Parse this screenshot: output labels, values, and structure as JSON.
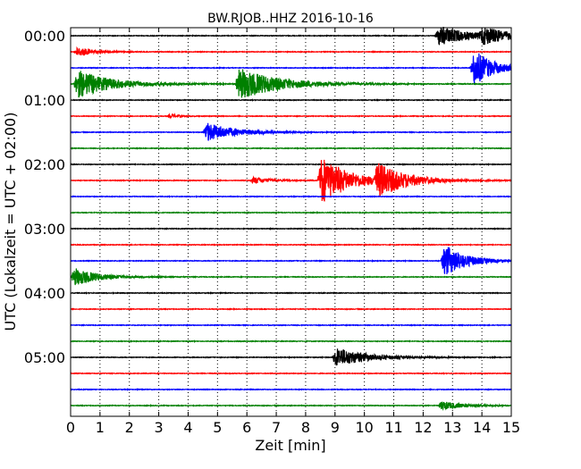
{
  "chart_data": {
    "type": "line",
    "title": "BW.RJOB..HHZ 2016-10-16",
    "xlabel": "Zeit  [min]",
    "ylabel": "UTC (Lokalzeit = UTC + 02:00)",
    "xlim": [
      0,
      15
    ],
    "x_ticks": [
      "0",
      "1",
      "2",
      "3",
      "4",
      "5",
      "6",
      "7",
      "8",
      "9",
      "10",
      "11",
      "12",
      "13",
      "14",
      "15"
    ],
    "y_ticks": [
      "00:00",
      "01:00",
      "02:00",
      "03:00",
      "04:00",
      "05:00"
    ],
    "grid": "x-dotted",
    "trace_minutes": 15,
    "trace_colors": [
      "#000000",
      "#ff0000",
      "#0000ff",
      "#008000"
    ],
    "trace_count": 24,
    "events": [
      {
        "trace": 0,
        "start": 12.4,
        "amp": 13,
        "decay": 2.2
      },
      {
        "trace": 0,
        "start": 13.9,
        "amp": 10,
        "decay": 2.0
      },
      {
        "trace": 1,
        "start": 0.1,
        "amp": 7,
        "decay": 1.2
      },
      {
        "trace": 2,
        "start": 13.6,
        "amp": 26,
        "decay": 1.4
      },
      {
        "trace": 3,
        "start": 0.1,
        "amp": 18,
        "decay": 2.5
      },
      {
        "trace": 3,
        "start": 5.6,
        "amp": 20,
        "decay": 3.0
      },
      {
        "trace": 5,
        "start": 3.3,
        "amp": 4,
        "decay": 0.6
      },
      {
        "trace": 6,
        "start": 4.5,
        "amp": 12,
        "decay": 2.2
      },
      {
        "trace": 9,
        "start": 6.1,
        "amp": 5,
        "decay": 1.2
      },
      {
        "trace": 9,
        "start": 8.4,
        "amp": 32,
        "decay": 2.0
      },
      {
        "trace": 9,
        "start": 10.3,
        "amp": 20,
        "decay": 2.2
      },
      {
        "trace": 14,
        "start": 12.6,
        "amp": 22,
        "decay": 1.6
      },
      {
        "trace": 15,
        "start": 0.0,
        "amp": 12,
        "decay": 1.8
      },
      {
        "trace": 20,
        "start": 8.9,
        "amp": 13,
        "decay": 2.2
      },
      {
        "trace": 23,
        "start": 12.5,
        "amp": 6,
        "decay": 1.6
      }
    ]
  }
}
